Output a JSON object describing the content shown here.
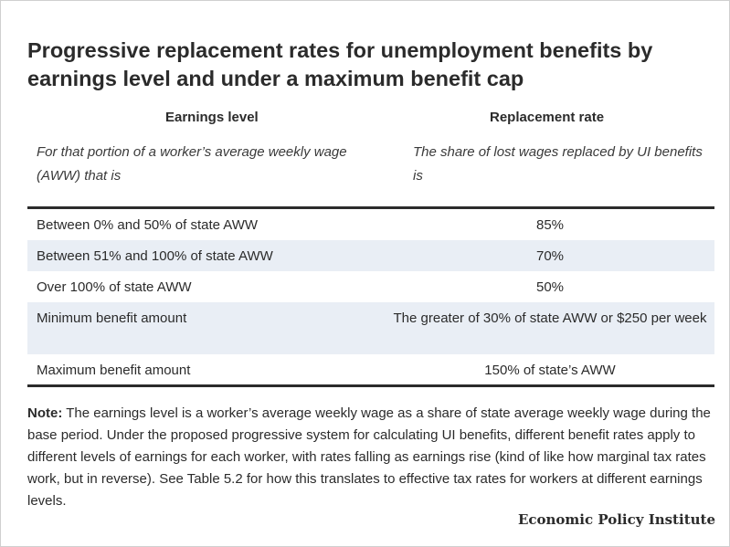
{
  "title": "Progressive replacement rates for unemployment benefits by earnings level and under a maximum benefit cap",
  "columns": {
    "left": {
      "header": "Earnings level",
      "subheader": "For that portion of a worker’s average weekly wage (AWW) that is"
    },
    "right": {
      "header": "Replacement rate",
      "subheader": "The share of lost wages replaced by UI benefits is"
    }
  },
  "rows": [
    {
      "level": "Between 0% and 50% of state AWW",
      "rate": "85%"
    },
    {
      "level": "Between 51% and 100% of state AWW",
      "rate": "70%"
    },
    {
      "level": "Over 100% of state AWW",
      "rate": "50%"
    },
    {
      "level": "Minimum benefit amount",
      "rate": "The greater of 30% of state AWW or $250 per week"
    },
    {
      "level": "Maximum benefit amount",
      "rate": "150% of state’s AWW"
    }
  ],
  "note": {
    "label": "Note:",
    "text": " The earnings level is a worker’s average weekly wage as a share of state average weekly wage during the base period. Under the proposed progressive system for calculating UI benefits, different benefit rates apply to different levels of earnings for each worker, with rates falling as earnings rise (kind of like how marginal tax rates work, but in reverse). See Table 5.2 for how this translates to effective tax rates for workers at different earnings levels."
  },
  "footer": {
    "source": "Economic Policy Institute"
  },
  "colors": {
    "shaded_row": "#e9eef5",
    "text": "#2b2b2b",
    "rule": "#2b2b2b"
  }
}
